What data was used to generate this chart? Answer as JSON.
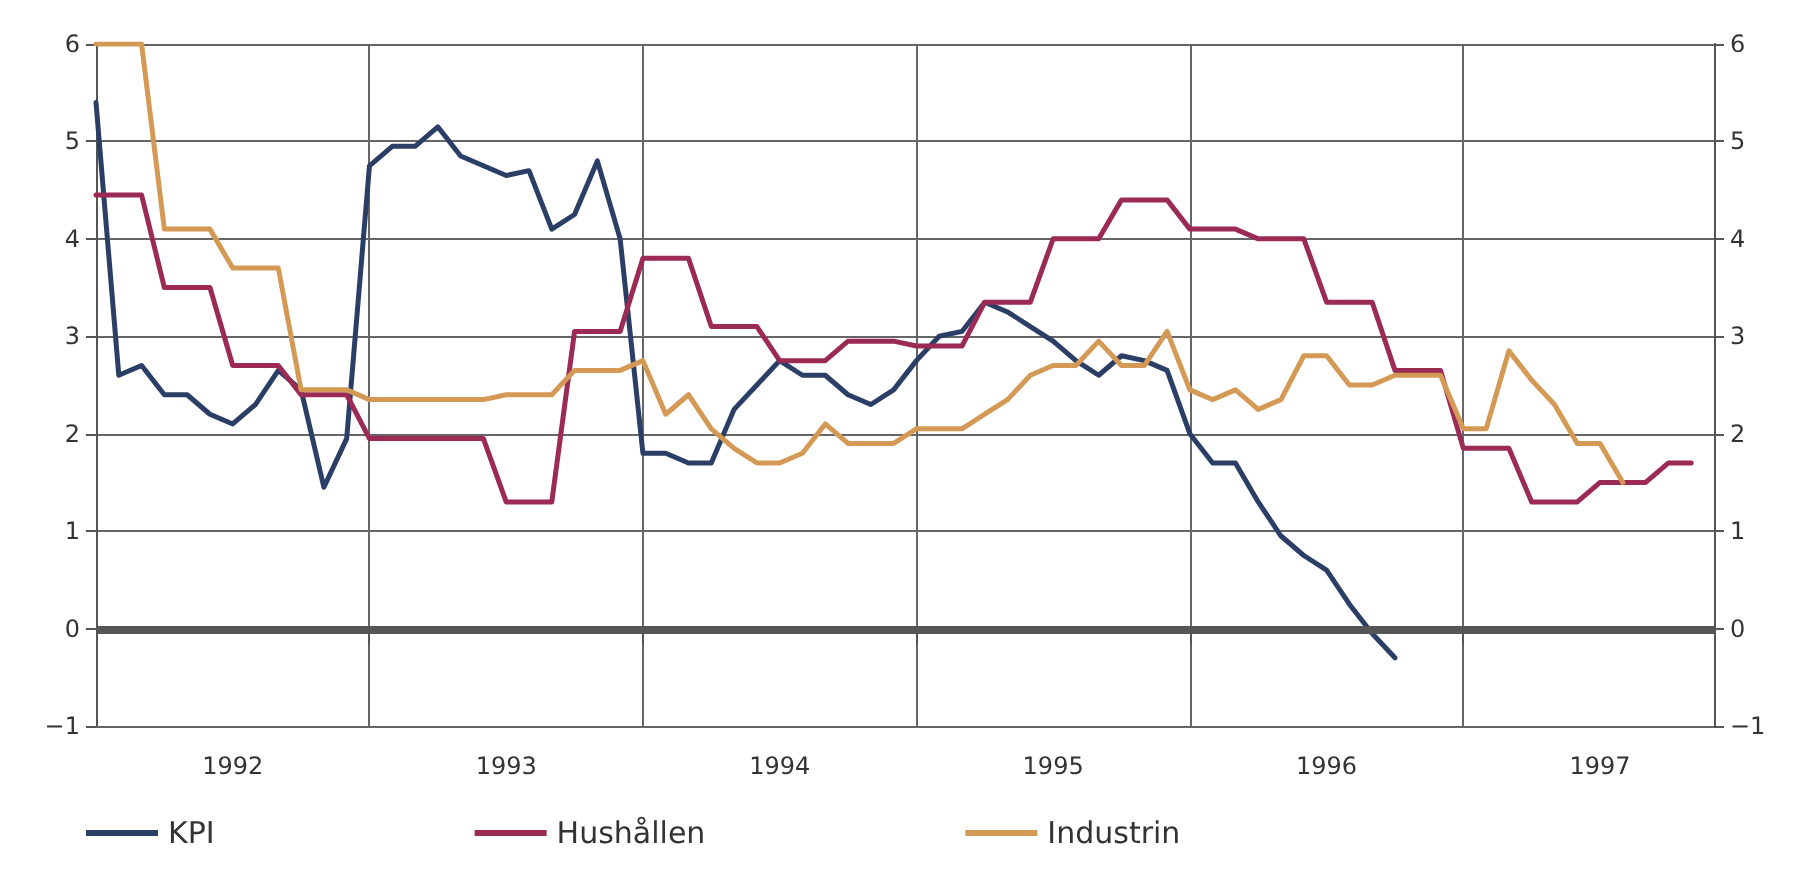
{
  "chart_data": {
    "type": "line",
    "categories": [
      null,
      null,
      null,
      null,
      null,
      null,
      "1992",
      null,
      null,
      null,
      null,
      null,
      null,
      null,
      null,
      null,
      null,
      null,
      "1993",
      null,
      null,
      null,
      null,
      null,
      null,
      null,
      null,
      null,
      null,
      null,
      "1994",
      null,
      null,
      null,
      null,
      null,
      null,
      null,
      null,
      null,
      null,
      null,
      "1995",
      null,
      null,
      null,
      null,
      null,
      null,
      null,
      null,
      null,
      null,
      null,
      "1996",
      null,
      null,
      null,
      null,
      null,
      null,
      null,
      null,
      null,
      null,
      null,
      "1997",
      null,
      null,
      null,
      null,
      null
    ],
    "series": [
      {
        "name": "KPI",
        "color": "#2b3f66",
        "values": [
          5.4,
          2.6,
          2.7,
          2.4,
          2.4,
          2.2,
          2.1,
          2.3,
          2.65,
          2.45,
          1.45,
          1.95,
          4.75,
          4.95,
          4.95,
          5.15,
          4.85,
          4.75,
          4.65,
          4.7,
          4.1,
          4.25,
          4.8,
          4.0,
          1.8,
          1.8,
          1.7,
          1.7,
          2.25,
          2.5,
          2.75,
          2.6,
          2.6,
          2.4,
          2.3,
          2.45,
          2.75,
          3.0,
          3.05,
          3.35,
          3.25,
          3.1,
          2.95,
          2.75,
          2.6,
          2.8,
          2.75,
          2.65,
          2.0,
          1.7,
          1.7,
          1.3,
          0.95,
          0.75,
          0.6,
          0.25,
          -0.05,
          -0.3,
          null,
          null,
          null,
          null,
          null,
          null,
          null,
          null,
          null,
          null,
          null,
          null,
          null,
          null
        ]
      },
      {
        "name": "Hushållen",
        "color": "#9b2a55",
        "values": [
          4.45,
          4.45,
          4.45,
          3.5,
          3.5,
          3.5,
          2.7,
          2.7,
          2.7,
          2.4,
          2.4,
          2.4,
          1.95,
          1.95,
          1.95,
          1.95,
          1.95,
          1.95,
          1.3,
          1.3,
          1.3,
          3.05,
          3.05,
          3.05,
          3.8,
          3.8,
          3.8,
          3.1,
          3.1,
          3.1,
          2.75,
          2.75,
          2.75,
          2.95,
          2.95,
          2.95,
          2.9,
          2.9,
          2.9,
          3.35,
          3.35,
          3.35,
          4.0,
          4.0,
          4.0,
          4.4,
          4.4,
          4.4,
          4.1,
          4.1,
          4.1,
          4.0,
          4.0,
          4.0,
          3.35,
          3.35,
          3.35,
          2.65,
          2.65,
          2.65,
          1.85,
          1.85,
          1.85,
          1.3,
          1.3,
          1.3,
          1.5,
          1.5,
          1.5,
          1.7,
          1.7,
          null
        ]
      },
      {
        "name": "Industrin",
        "color": "#d49a55",
        "values": [
          6.0,
          6.0,
          6.0,
          4.1,
          4.1,
          4.1,
          3.7,
          3.7,
          3.7,
          2.45,
          2.45,
          2.45,
          2.35,
          2.35,
          2.35,
          2.35,
          2.35,
          2.35,
          2.4,
          2.4,
          2.4,
          2.65,
          2.65,
          2.65,
          2.75,
          2.2,
          2.4,
          2.05,
          1.85,
          1.7,
          1.7,
          1.8,
          2.1,
          1.9,
          1.9,
          1.9,
          2.05,
          2.05,
          2.05,
          2.2,
          2.35,
          2.6,
          2.7,
          2.7,
          2.95,
          2.7,
          2.7,
          3.05,
          2.45,
          2.35,
          2.45,
          2.25,
          2.35,
          2.8,
          2.8,
          2.5,
          2.5,
          2.6,
          2.6,
          2.6,
          2.05,
          2.05,
          2.85,
          2.55,
          2.3,
          1.9,
          1.9,
          1.5,
          null,
          null,
          null,
          null
        ]
      }
    ],
    "ylim": [
      -1,
      6
    ],
    "yticks": [
      -1,
      0,
      1,
      2,
      3,
      4,
      5,
      6
    ],
    "y2lim": [
      -1,
      6
    ],
    "y2ticks": [
      -1,
      0,
      1,
      2,
      3,
      4,
      5,
      6
    ],
    "ref_lines": [
      {
        "axis": "y",
        "value": 0
      }
    ],
    "grid": true,
    "legend": "bottom left",
    "marker": "none",
    "line_style": "solid"
  }
}
